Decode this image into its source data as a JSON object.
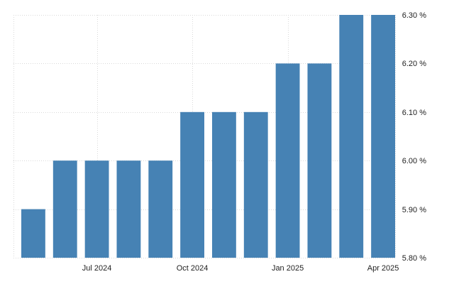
{
  "chart_data": {
    "type": "bar",
    "categories": [
      "2024-05",
      "2024-06",
      "2024-07",
      "2024-08",
      "2024-09",
      "2024-10",
      "2024-11",
      "2024-12",
      "2025-01",
      "2025-02",
      "2025-03",
      "2025-04"
    ],
    "values": [
      5.9,
      6.0,
      6.0,
      6.0,
      6.0,
      6.1,
      6.1,
      6.1,
      6.2,
      6.2,
      6.3,
      6.3
    ],
    "x_tick_labels": [
      {
        "category": "2024-07",
        "label": "Jul 2024"
      },
      {
        "category": "2024-10",
        "label": "Oct 2024"
      },
      {
        "category": "2025-01",
        "label": "Jan 2025"
      },
      {
        "category": "2025-04",
        "label": "Apr 2025"
      }
    ],
    "y_ticks": [
      5.8,
      5.9,
      6.0,
      6.1,
      6.2,
      6.3
    ],
    "y_tick_labels": [
      "5.80 %",
      "5.90 %",
      "6.00 %",
      "6.10 %",
      "6.20 %",
      "6.30 %"
    ],
    "ylim": [
      5.8,
      6.3
    ],
    "ylabel": "",
    "xlabel": "",
    "title": "",
    "grid": true,
    "y_axis_position": "right",
    "bar_color": "#4682b4",
    "grid_color": "#d9d9d9",
    "label_color": "#222222"
  }
}
